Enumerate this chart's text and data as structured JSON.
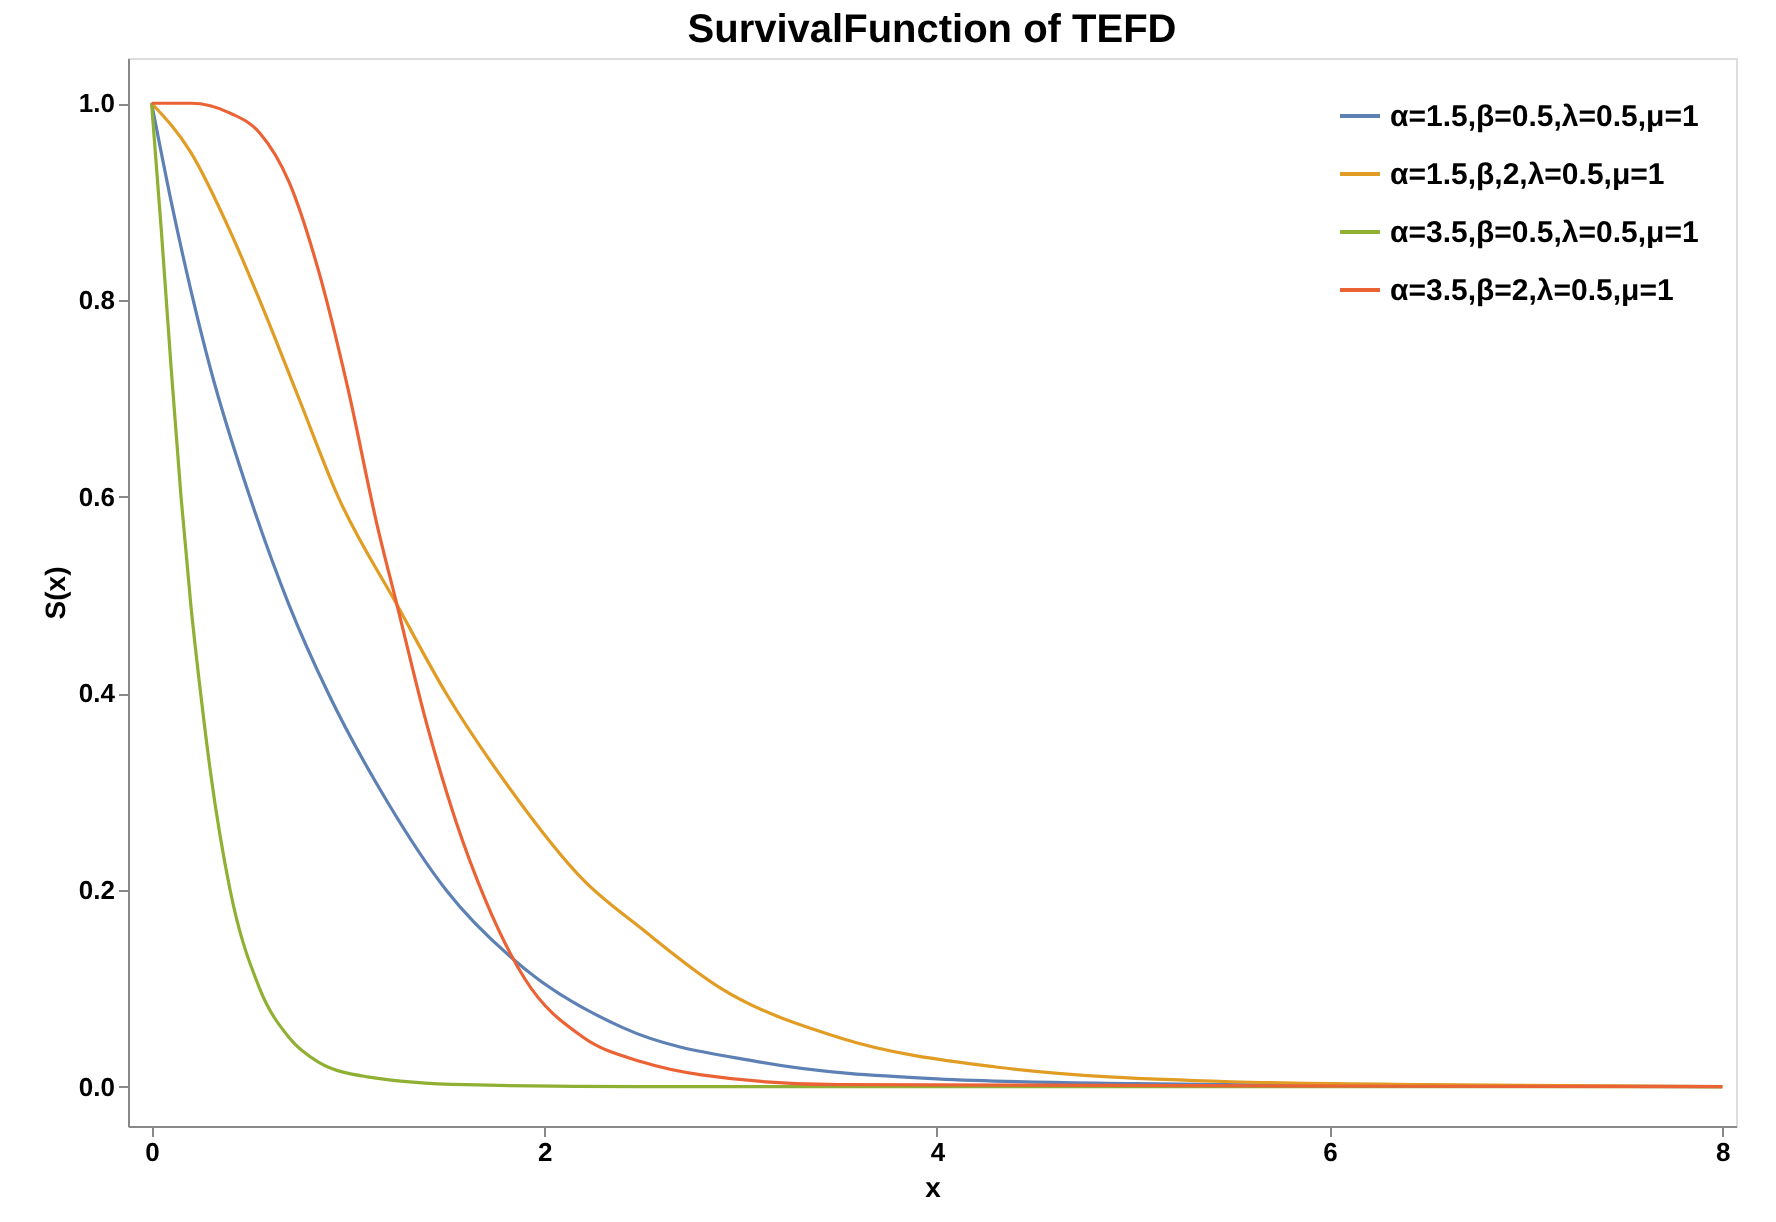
{
  "chart_data": {
    "type": "line",
    "title": "SurvivalFunction of TEFD",
    "xlabel": "x",
    "ylabel": "S(x)",
    "xlim": [
      -0.12,
      8.07
    ],
    "ylim": [
      -0.04,
      1.046
    ],
    "xticks": [
      0,
      2,
      4,
      6,
      8
    ],
    "yticks": [
      {
        "value": 0,
        "label": "0.0"
      },
      {
        "value": 0.2,
        "label": "0.2"
      },
      {
        "value": 0.4,
        "label": "0.4"
      },
      {
        "value": 0.6,
        "label": "0.6"
      },
      {
        "value": 0.8,
        "label": "0.8"
      },
      {
        "value": 1,
        "label": "1.0"
      }
    ],
    "grid": false,
    "legend": "top right",
    "marker": "none",
    "line_style": "solid",
    "series": [
      {
        "name": "α=1.5,β=0.5,λ=0.5,μ=1",
        "color": "#5e81b5",
        "x": [
          0,
          0.1,
          0.2,
          0.3,
          0.5,
          0.7,
          0.9,
          1.2,
          1.5,
          1.9,
          2.4,
          3.1,
          4,
          5,
          6,
          8
        ],
        "values": [
          1,
          0.9,
          0.81,
          0.73,
          0.6,
          0.49,
          0.4,
          0.29,
          0.2,
          0.12,
          0.06,
          0.025,
          0.008,
          0.003,
          0.001,
          0
        ]
      },
      {
        "name": "α=1.5,β,2,λ=0.5,μ=1",
        "color": "#e19c24",
        "x": [
          0,
          0.2,
          0.4,
          0.55,
          0.75,
          0.95,
          1.25,
          1.5,
          1.8,
          2.2,
          2.5,
          2.9,
          3.5,
          4.3,
          5.5,
          6.5,
          8
        ],
        "values": [
          1,
          0.95,
          0.87,
          0.8,
          0.7,
          0.6,
          0.49,
          0.4,
          0.31,
          0.21,
          0.16,
          0.1,
          0.05,
          0.02,
          0.005,
          0.002,
          0
        ]
      },
      {
        "name": "α=3.5,β=0.5,λ=0.5,μ=1",
        "color": "#8fb032",
        "x": [
          0,
          0.05,
          0.1,
          0.15,
          0.2,
          0.25,
          0.3,
          0.4,
          0.55,
          0.7,
          0.85,
          1.1,
          1.6,
          2.5,
          8
        ],
        "values": [
          1,
          0.87,
          0.73,
          0.6,
          0.49,
          0.4,
          0.32,
          0.2,
          0.1,
          0.05,
          0.025,
          0.01,
          0.002,
          0,
          0
        ]
      },
      {
        "name": "α=3.5,β=2,λ=0.5,μ=1",
        "color": "#eb6235",
        "x": [
          0,
          0.2,
          0.4,
          0.55,
          0.7,
          0.85,
          1,
          1.15,
          1.25,
          1.4,
          1.55,
          1.7,
          1.9,
          2.2,
          2.5,
          2.8,
          3.5,
          8
        ],
        "values": [
          1,
          1,
          0.99,
          0.97,
          0.92,
          0.83,
          0.71,
          0.57,
          0.49,
          0.37,
          0.27,
          0.19,
          0.11,
          0.05,
          0.025,
          0.012,
          0.002,
          0
        ]
      }
    ]
  }
}
